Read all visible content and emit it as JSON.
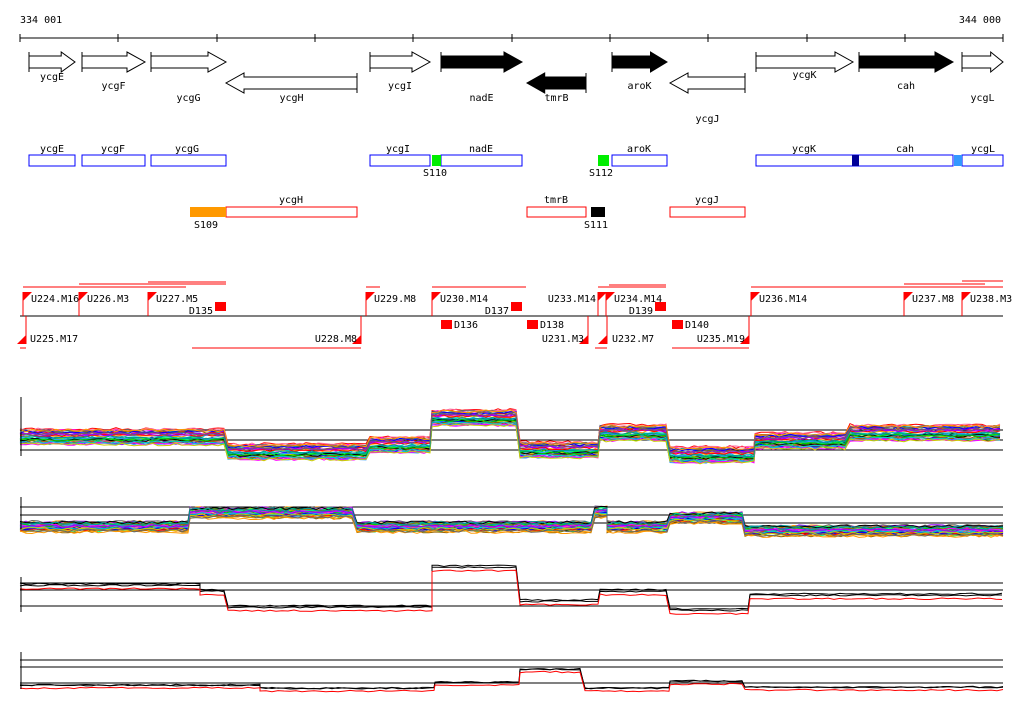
{
  "ruler": {
    "start_label": "334 001",
    "end_label": "344 000"
  },
  "genes": [
    {
      "name": "ycgE",
      "strand": "+",
      "essential": false
    },
    {
      "name": "ycgF",
      "strand": "+",
      "essential": false
    },
    {
      "name": "ycgG",
      "strand": "+",
      "essential": false
    },
    {
      "name": "ycgH",
      "strand": "-",
      "essential": false
    },
    {
      "name": "ycgI",
      "strand": "+",
      "essential": false
    },
    {
      "name": "nadE",
      "strand": "+",
      "essential": true
    },
    {
      "name": "tmrB",
      "strand": "-",
      "essential": true
    },
    {
      "name": "aroK",
      "strand": "+",
      "essential": true
    },
    {
      "name": "ycgJ",
      "strand": "-",
      "essential": false
    },
    {
      "name": "ycgK",
      "strand": "+",
      "essential": false
    },
    {
      "name": "cah",
      "strand": "+",
      "essential": true
    },
    {
      "name": "ycgL",
      "strand": "+",
      "essential": false
    }
  ],
  "transcripts_forward": [
    "ycgE",
    "ycgF",
    "ycgG",
    "ycgI",
    "nadE",
    "aroK",
    "ycgK",
    "cah",
    "ycgL"
  ],
  "transcripts_reverse": [
    "ycgH",
    "tmrB",
    "ycgJ"
  ],
  "sites": [
    {
      "label": "S109",
      "color": "#ff9900"
    },
    {
      "label": "S110",
      "color": "#00ee00"
    },
    {
      "label": "S111",
      "color": "#000000"
    },
    {
      "label": "S112",
      "color": "#00ee00"
    }
  ],
  "segments_up": [
    "U224.M16",
    "U226.M3",
    "U227.M5",
    "U229.M8",
    "U230.M14",
    "U233.M14",
    "U234.M14",
    "U236.M14",
    "U237.M8",
    "U238.M3"
  ],
  "segments_down": [
    "U225.M17",
    "U228.M8",
    "U231.M3",
    "U232.M7",
    "U235.M19"
  ],
  "downshifts": [
    "D135",
    "D136",
    "D137",
    "D138",
    "D139",
    "D140"
  ],
  "colors": {
    "segment": "#ff0000",
    "forward_box": "#0000ff",
    "reverse_box": "#ff0000",
    "cah_marker": "#000099",
    "ycgL_marker": "#3399ff"
  },
  "chart_data": {
    "type": "line",
    "title": "",
    "panels": [
      {
        "name": "expression-panel-1",
        "series_count": 40
      },
      {
        "name": "expression-panel-2",
        "series_count": 40
      },
      {
        "name": "expression-panel-3",
        "series": [
          "black",
          "black",
          "red"
        ]
      },
      {
        "name": "expression-panel-4",
        "series": [
          "black",
          "black",
          "red"
        ]
      }
    ]
  }
}
